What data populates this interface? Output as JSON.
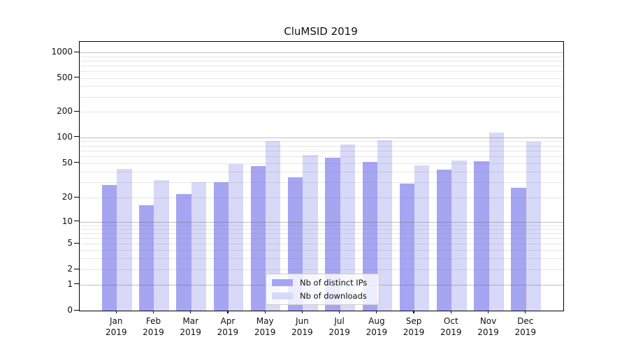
{
  "title": "CluMSID 2019",
  "chart_data": {
    "type": "bar",
    "title": "CluMSID 2019",
    "categories": [
      "Jan 2019",
      "Feb 2019",
      "Mar 2019",
      "Apr 2019",
      "May 2019",
      "Jun 2019",
      "Jul 2019",
      "Aug 2019",
      "Sep 2019",
      "Oct 2019",
      "Nov 2019",
      "Dec 2019"
    ],
    "series": [
      {
        "name": "Nb of distinct IPs",
        "color": "#a5a5f2",
        "values": [
          28,
          16,
          22,
          30,
          46,
          34,
          58,
          52,
          29,
          42,
          53,
          26
        ]
      },
      {
        "name": "Nb of downloads",
        "color": "#d8d8f8",
        "values": [
          43,
          32,
          30,
          49,
          90,
          62,
          82,
          92,
          47,
          54,
          114,
          89
        ]
      }
    ],
    "xlabel": "",
    "ylabel": "",
    "yscale": "symlog",
    "ylim": [
      0,
      1000
    ],
    "yticks": [
      0,
      1,
      2,
      5,
      10,
      20,
      50,
      100,
      200,
      500,
      1000
    ],
    "grid": true,
    "legend_position": "lower center inside"
  },
  "colors": {
    "bar_distinct_ips": "#a5a5f2",
    "bar_downloads": "#d8d8f8",
    "axis": "#000000",
    "major_grid": "#c6c6c6",
    "minor_grid": "#e9e9e9",
    "background": "#ffffff"
  }
}
